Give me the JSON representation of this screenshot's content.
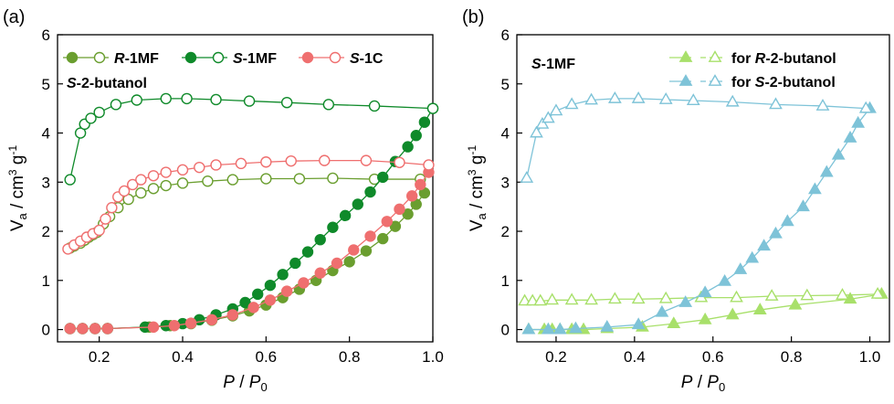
{
  "chart_data": [
    {
      "panel_label": "(a)",
      "type": "line",
      "ylabel": "Va / cm3 g-1",
      "xlabel": "P / P0",
      "xlim": [
        0.1,
        1.0
      ],
      "ylim": [
        -0.25,
        6
      ],
      "xticks": [
        "0.2",
        "0.4",
        "0.6",
        "0.8",
        "1.0"
      ],
      "yticks": [
        "0",
        "1",
        "2",
        "3",
        "4",
        "5",
        "6"
      ],
      "annotation": "S-2-butanol",
      "legend_position": "top",
      "legend": [
        {
          "label": "R-1MF",
          "color": "#6a9e2f"
        },
        {
          "label": "S-1MF",
          "color": "#0f8a2a"
        },
        {
          "label": "S-1C",
          "color": "#ef6f6f"
        }
      ],
      "series": [
        {
          "name": "R-1MF",
          "branch": "adsorption",
          "marker": "circle",
          "filled": true,
          "color": "#6a9e2f",
          "x": [
            0.13,
            0.16,
            0.19,
            0.22,
            0.32,
            0.37,
            0.42,
            0.47,
            0.52,
            0.56,
            0.6,
            0.64,
            0.68,
            0.72,
            0.76,
            0.8,
            0.84,
            0.88,
            0.91,
            0.94,
            0.96,
            0.98
          ],
          "y": [
            0.02,
            0.02,
            0.02,
            0.02,
            0.05,
            0.08,
            0.12,
            0.19,
            0.28,
            0.38,
            0.5,
            0.65,
            0.82,
            1.0,
            1.2,
            1.38,
            1.6,
            1.85,
            2.1,
            2.35,
            2.55,
            2.78
          ]
        },
        {
          "name": "R-1MF",
          "branch": "desorption",
          "marker": "circle",
          "filled": false,
          "color": "#6a9e2f",
          "x": [
            0.13,
            0.14,
            0.155,
            0.165,
            0.175,
            0.185,
            0.195,
            0.21,
            0.225,
            0.245,
            0.27,
            0.3,
            0.33,
            0.36,
            0.4,
            0.46,
            0.52,
            0.6,
            0.68,
            0.76,
            0.86,
            0.97
          ],
          "y": [
            1.66,
            1.7,
            1.76,
            1.82,
            1.88,
            1.93,
            1.98,
            2.15,
            2.3,
            2.48,
            2.65,
            2.78,
            2.87,
            2.93,
            2.98,
            3.02,
            3.05,
            3.07,
            3.07,
            3.08,
            3.06,
            3.06
          ]
        },
        {
          "name": "S-1MF",
          "branch": "adsorption",
          "marker": "circle",
          "filled": true,
          "color": "#0f8a2a",
          "x": [
            0.13,
            0.16,
            0.19,
            0.22,
            0.31,
            0.36,
            0.4,
            0.44,
            0.48,
            0.52,
            0.55,
            0.58,
            0.61,
            0.64,
            0.67,
            0.7,
            0.73,
            0.76,
            0.79,
            0.82,
            0.85,
            0.88,
            0.91,
            0.94,
            0.96,
            0.98,
            1.0
          ],
          "y": [
            0.02,
            0.02,
            0.02,
            0.02,
            0.05,
            0.08,
            0.12,
            0.2,
            0.3,
            0.42,
            0.55,
            0.72,
            0.9,
            1.12,
            1.35,
            1.58,
            1.83,
            2.08,
            2.32,
            2.55,
            2.8,
            3.1,
            3.42,
            3.72,
            3.95,
            4.22,
            4.5
          ]
        },
        {
          "name": "S-1MF",
          "branch": "desorption",
          "marker": "circle",
          "filled": false,
          "color": "#0f8a2a",
          "x": [
            0.13,
            0.155,
            0.165,
            0.18,
            0.2,
            0.24,
            0.29,
            0.36,
            0.41,
            0.48,
            0.56,
            0.65,
            0.75,
            0.86,
            1.0
          ],
          "y": [
            3.05,
            4.0,
            4.18,
            4.3,
            4.42,
            4.58,
            4.67,
            4.7,
            4.7,
            4.68,
            4.65,
            4.62,
            4.58,
            4.55,
            4.5
          ]
        },
        {
          "name": "S-1C",
          "branch": "adsorption",
          "marker": "circle",
          "filled": true,
          "color": "#ef6f6f",
          "x": [
            0.13,
            0.16,
            0.19,
            0.22,
            0.33,
            0.38,
            0.42,
            0.47,
            0.52,
            0.57,
            0.61,
            0.65,
            0.69,
            0.73,
            0.77,
            0.81,
            0.85,
            0.89,
            0.92,
            0.95,
            0.97,
            0.99
          ],
          "y": [
            0.02,
            0.02,
            0.02,
            0.02,
            0.05,
            0.08,
            0.13,
            0.2,
            0.3,
            0.45,
            0.6,
            0.78,
            0.95,
            1.15,
            1.35,
            1.62,
            1.9,
            2.2,
            2.45,
            2.72,
            2.95,
            3.2
          ]
        },
        {
          "name": "S-1C",
          "branch": "desorption",
          "marker": "circle",
          "filled": false,
          "color": "#ef6f6f",
          "x": [
            0.125,
            0.14,
            0.155,
            0.17,
            0.185,
            0.2,
            0.215,
            0.23,
            0.245,
            0.26,
            0.28,
            0.3,
            0.33,
            0.36,
            0.4,
            0.44,
            0.48,
            0.54,
            0.6,
            0.66,
            0.74,
            0.84,
            0.92,
            0.99
          ],
          "y": [
            1.64,
            1.72,
            1.8,
            1.88,
            1.95,
            2.02,
            2.25,
            2.48,
            2.7,
            2.82,
            2.95,
            3.05,
            3.13,
            3.2,
            3.25,
            3.3,
            3.35,
            3.38,
            3.41,
            3.43,
            3.44,
            3.44,
            3.4,
            3.35
          ]
        }
      ]
    },
    {
      "panel_label": "(b)",
      "type": "line",
      "ylabel": "Va / cm3 g-1",
      "xlabel": "P / P0",
      "xlim": [
        0.1,
        1.05
      ],
      "ylim": [
        -0.25,
        6
      ],
      "xticks": [
        "0.2",
        "0.4",
        "0.6",
        "0.8",
        "1.0"
      ],
      "yticks": [
        "0",
        "1",
        "2",
        "3",
        "4",
        "5",
        "6"
      ],
      "annotation": "S-1MF",
      "legend_position": "top-right",
      "legend": [
        {
          "label": "for R-2-butanol",
          "color": "#a8e06a"
        },
        {
          "label": "for S-2-butanol",
          "color": "#7ec3d8"
        }
      ],
      "series": [
        {
          "name": "for R-2-butanol",
          "branch": "adsorption",
          "marker": "triangle",
          "filled": true,
          "color": "#a8e06a",
          "x": [
            0.13,
            0.17,
            0.19,
            0.21,
            0.24,
            0.27,
            0.33,
            0.42,
            0.5,
            0.58,
            0.65,
            0.72,
            0.81,
            0.95,
            1.03
          ],
          "y": [
            0.0,
            0.0,
            0.0,
            0.0,
            0.0,
            0.0,
            0.02,
            0.05,
            0.12,
            0.2,
            0.3,
            0.4,
            0.5,
            0.62,
            0.72
          ]
        },
        {
          "name": "for R-2-butanol",
          "branch": "desorption",
          "marker": "triangle",
          "filled": false,
          "color": "#a8e06a",
          "x": [
            0.12,
            0.14,
            0.16,
            0.19,
            0.24,
            0.29,
            0.35,
            0.41,
            0.48,
            0.57,
            0.66,
            0.75,
            0.84,
            0.93,
            1.02
          ],
          "y": [
            0.58,
            0.58,
            0.58,
            0.6,
            0.6,
            0.6,
            0.62,
            0.62,
            0.63,
            0.65,
            0.65,
            0.68,
            0.69,
            0.7,
            0.72
          ]
        },
        {
          "name": "for S-2-butanol",
          "branch": "adsorption",
          "marker": "triangle",
          "filled": true,
          "color": "#7ec3d8",
          "x": [
            0.13,
            0.18,
            0.21,
            0.25,
            0.33,
            0.41,
            0.47,
            0.53,
            0.58,
            0.63,
            0.67,
            0.7,
            0.73,
            0.76,
            0.79,
            0.83,
            0.86,
            0.89,
            0.92,
            0.95,
            0.97,
            1.0
          ],
          "y": [
            0.0,
            0.0,
            0.0,
            0.02,
            0.05,
            0.1,
            0.35,
            0.55,
            0.75,
            0.98,
            1.22,
            1.45,
            1.7,
            1.95,
            2.2,
            2.5,
            2.85,
            3.2,
            3.55,
            3.9,
            4.2,
            4.5
          ]
        },
        {
          "name": "for S-2-butanol",
          "branch": "desorption",
          "marker": "triangle",
          "filled": false,
          "color": "#7ec3d8",
          "x": [
            0.125,
            0.15,
            0.165,
            0.18,
            0.2,
            0.24,
            0.29,
            0.35,
            0.41,
            0.48,
            0.55,
            0.65,
            0.76,
            0.88,
            0.99
          ],
          "y": [
            3.08,
            4.0,
            4.18,
            4.3,
            4.45,
            4.58,
            4.67,
            4.7,
            4.7,
            4.68,
            4.66,
            4.63,
            4.58,
            4.55,
            4.5
          ]
        }
      ]
    }
  ]
}
